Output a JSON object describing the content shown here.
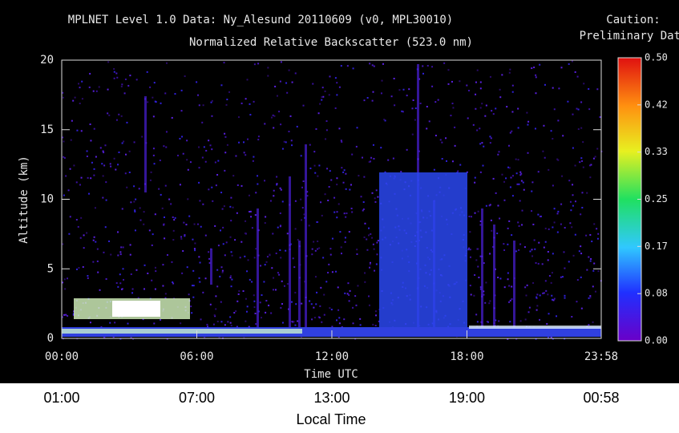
{
  "chart_data": {
    "type": "heatmap",
    "title": "MPLNET Level 1.0 Data: Ny_Alesund 20110609 (v0, MPL30010)",
    "subtitle": "Normalized Relative Backscatter (523.0 nm)",
    "annotation": [
      "Caution:",
      "Preliminary Data"
    ],
    "y_label": "Altitude (km)",
    "x_label": "Time UTC",
    "x2_label": "Local Time",
    "xlim": [
      0,
      23.9667
    ],
    "xticks": [
      {
        "value": 0,
        "label": "00:00"
      },
      {
        "value": 6,
        "label": "06:00"
      },
      {
        "value": 12,
        "label": "12:00"
      },
      {
        "value": 18,
        "label": "18:00"
      },
      {
        "value": 23.9667,
        "label": "23:58"
      }
    ],
    "x2ticks": [
      {
        "value": 0,
        "label": "01:00"
      },
      {
        "value": 6,
        "label": "07:00"
      },
      {
        "value": 12,
        "label": "13:00"
      },
      {
        "value": 18,
        "label": "19:00"
      },
      {
        "value": 23.9667,
        "label": "00:58"
      }
    ],
    "ylim": [
      0,
      20
    ],
    "yticks": [
      0,
      5,
      10,
      15,
      20
    ],
    "clim": [
      0,
      0.5
    ],
    "cticks": [
      {
        "value": 0,
        "label": "0.00"
      },
      {
        "value": 0.0833,
        "label": "0.08"
      },
      {
        "value": 0.1667,
        "label": "0.17"
      },
      {
        "value": 0.25,
        "label": "0.25"
      },
      {
        "value": 0.3333,
        "label": "0.33"
      },
      {
        "value": 0.4167,
        "label": "0.42"
      },
      {
        "value": 0.5,
        "label": "0.50"
      }
    ],
    "annotation_color": "#c0281c"
  }
}
